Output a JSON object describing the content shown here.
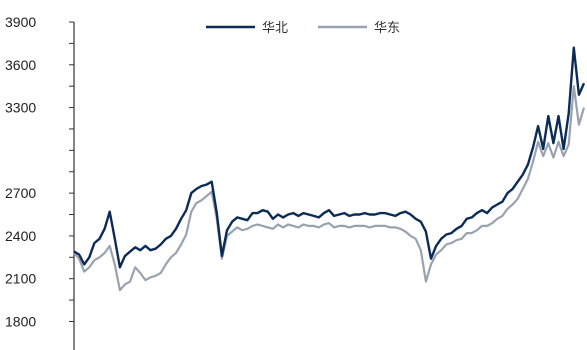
{
  "chart_data": {
    "type": "line",
    "title": "",
    "xlabel": "",
    "ylabel": "",
    "ylim": [
      1600,
      3900
    ],
    "y_ticks": [
      "3900",
      "3600",
      "3300",
      "2700",
      "2400",
      "2100",
      "1800"
    ],
    "y_tick_values": [
      3900,
      3600,
      3300,
      2700,
      2400,
      2100,
      1800
    ],
    "legend_position": "top-center",
    "grid": false,
    "series": [
      {
        "name": "华北",
        "color": "#0d2b57",
        "x": [
          0,
          1,
          2,
          3,
          4,
          5,
          6,
          7,
          8,
          9,
          10,
          11,
          12,
          13,
          14,
          15,
          16,
          17,
          18,
          19,
          20,
          21,
          22,
          23,
          24,
          25,
          26,
          27,
          28,
          29,
          30,
          31,
          32,
          33,
          34,
          35,
          36,
          37,
          38,
          39,
          40,
          41,
          42,
          43,
          44,
          45,
          46,
          47,
          48,
          49,
          50,
          51,
          52,
          53,
          54,
          55,
          56,
          57,
          58,
          59,
          60,
          61,
          62,
          63,
          64,
          65,
          66,
          67,
          68,
          69,
          70,
          71,
          72,
          73,
          74,
          75,
          76,
          77,
          78,
          79,
          80,
          81,
          82,
          83,
          84,
          85,
          86,
          87,
          88,
          89,
          90,
          91,
          92,
          93,
          94,
          95,
          96,
          97,
          98,
          99,
          100
        ],
        "values": [
          2290,
          2270,
          2200,
          2250,
          2350,
          2380,
          2450,
          2570,
          2380,
          2180,
          2260,
          2290,
          2320,
          2300,
          2330,
          2300,
          2310,
          2340,
          2380,
          2400,
          2450,
          2520,
          2580,
          2700,
          2730,
          2750,
          2760,
          2780,
          2560,
          2260,
          2440,
          2500,
          2530,
          2520,
          2510,
          2560,
          2560,
          2580,
          2570,
          2520,
          2550,
          2530,
          2550,
          2560,
          2540,
          2560,
          2550,
          2540,
          2530,
          2560,
          2580,
          2540,
          2550,
          2560,
          2540,
          2550,
          2550,
          2560,
          2550,
          2550,
          2560,
          2560,
          2550,
          2540,
          2560,
          2570,
          2550,
          2520,
          2500,
          2430,
          2240,
          2330,
          2380,
          2410,
          2420,
          2450,
          2470,
          2520,
          2530,
          2560,
          2580,
          2560,
          2600,
          2620,
          2640,
          2700,
          2730,
          2780,
          2830,
          2900,
          3020,
          3170,
          3010,
          3240,
          3050,
          3240,
          3010,
          3260,
          3720,
          3390,
          3470
        ]
      },
      {
        "name": "华东",
        "color": "#99a3b0",
        "x": [
          0,
          1,
          2,
          3,
          4,
          5,
          6,
          7,
          8,
          9,
          10,
          11,
          12,
          13,
          14,
          15,
          16,
          17,
          18,
          19,
          20,
          21,
          22,
          23,
          24,
          25,
          26,
          27,
          28,
          29,
          30,
          31,
          32,
          33,
          34,
          35,
          36,
          37,
          38,
          39,
          40,
          41,
          42,
          43,
          44,
          45,
          46,
          47,
          48,
          49,
          50,
          51,
          52,
          53,
          54,
          55,
          56,
          57,
          58,
          59,
          60,
          61,
          62,
          63,
          64,
          65,
          66,
          67,
          68,
          69,
          70,
          71,
          72,
          73,
          74,
          75,
          76,
          77,
          78,
          79,
          80,
          81,
          82,
          83,
          84,
          85,
          86,
          87,
          88,
          89,
          90,
          91,
          92,
          93,
          94,
          95,
          96,
          97,
          98,
          99,
          100
        ],
        "values": [
          2280,
          2240,
          2150,
          2180,
          2230,
          2250,
          2280,
          2330,
          2200,
          2020,
          2060,
          2080,
          2180,
          2140,
          2090,
          2110,
          2120,
          2140,
          2200,
          2250,
          2280,
          2340,
          2410,
          2570,
          2630,
          2650,
          2680,
          2710,
          2520,
          2240,
          2400,
          2430,
          2460,
          2440,
          2450,
          2470,
          2480,
          2470,
          2460,
          2450,
          2480,
          2460,
          2480,
          2470,
          2460,
          2480,
          2470,
          2470,
          2460,
          2480,
          2490,
          2460,
          2470,
          2470,
          2460,
          2470,
          2470,
          2470,
          2460,
          2470,
          2470,
          2470,
          2460,
          2460,
          2450,
          2430,
          2400,
          2380,
          2300,
          2080,
          2200,
          2270,
          2300,
          2340,
          2350,
          2370,
          2380,
          2420,
          2420,
          2440,
          2470,
          2470,
          2490,
          2520,
          2540,
          2590,
          2620,
          2660,
          2730,
          2800,
          2920,
          3060,
          2960,
          3050,
          2950,
          3060,
          2960,
          3040,
          3450,
          3180,
          3300
        ]
      }
    ]
  }
}
